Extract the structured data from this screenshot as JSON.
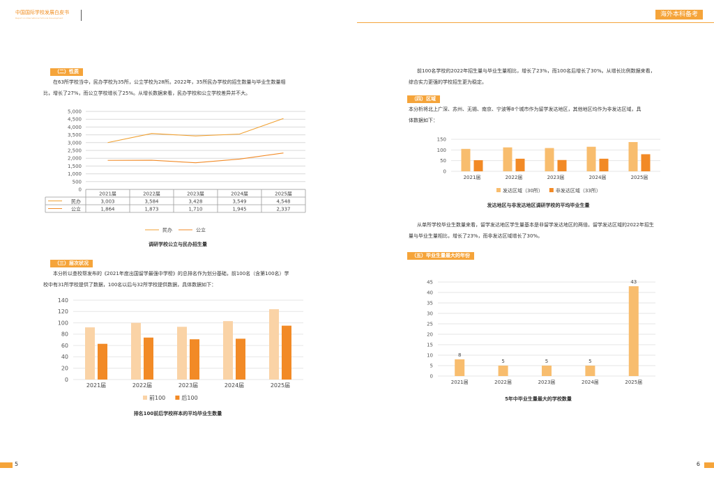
{
  "header": {
    "brand_line1": "中国国际学校发展白皮书",
    "brand_line2": "Report on International Schools Development",
    "tag": "海外本科备考"
  },
  "left": {
    "nature": {
      "label": "（二）性质",
      "lines": [
        "在63所学校当中，民办学校为35所，公立学校为28所。2022年，35所民办学校的招生数量与毕业生数量相",
        "比，增长了27%，而公立学校增长了25%。从增长数据来看，民办学校和公立学校差异并不大。"
      ]
    },
    "level": {
      "label": "（三）层次状况",
      "lines": [
        "本分析以查校帮发布的《2021年度出国留学最强中学榜》的总排名作为划分基础，前100名（含第100名）学",
        "校中有31所学校提供了数据，100名以后与32所学校提供数据，具体数据如下："
      ]
    },
    "caption1": "调研学校公立与民办招生量",
    "caption2": "排名100前后学校样本的平均毕业生数量",
    "page_num": "5"
  },
  "right": {
    "intro_lines": [
      "前100名学校的2022年招生量与毕业生量相比，增长了23%，而100名后增长了30%。从增长比例数据来看，",
      "综合实力更强的学校招生更为稳定。"
    ],
    "region": {
      "label": "（四）区域",
      "lines": [
        "本分析将北上广深、苏州、无锡、南京、宁波等8个城市作为留学发达地区，其他地区均作为非发达区域，具",
        "体数据如下："
      ]
    },
    "region_analysis": [
      "从单所学校毕业生数量来看，留学发达地区学生量基本是非留学发达地区的两倍。留学发达区域的2022年招生",
      "量与毕业生量相比，增长了23%，而非发达区域增长了30%。"
    ],
    "peak": {
      "label": "（五）毕业生量最大的年份"
    },
    "caption3": "发达地区与非发达地区调研学校的平均毕业生量",
    "caption4": "5年中毕业生量最大的学校数量",
    "page_num": "6"
  },
  "colors": {
    "accent": "#f5a43a",
    "line_private": "#f0a030",
    "light_bar": "#fad3a6",
    "dark_bar": "#f28a26",
    "mid_bar": "#f8bd6e"
  },
  "chart_data": [
    {
      "id": "line",
      "type": "line",
      "title": "调研学校公立与民办招生量",
      "categories": [
        "2021届",
        "2022届",
        "2023届",
        "2024届",
        "2025届"
      ],
      "series": [
        {
          "name": "民办",
          "values": [
            3003,
            3584,
            3428,
            3549,
            4548
          ],
          "labels": [
            "3,003",
            "3,584",
            "3,428",
            "3,549",
            "4,548"
          ]
        },
        {
          "name": "公立",
          "values": [
            1864,
            1873,
            1710,
            1945,
            2337
          ],
          "labels": [
            "1,864",
            "1,873",
            "1,710",
            "1,945",
            "2,337"
          ]
        }
      ],
      "ylim": [
        0,
        5000
      ],
      "yticks": [
        "0",
        "500",
        "1,000",
        "1,500",
        "2,000",
        "2,500",
        "3,000",
        "3,500",
        "4,000",
        "4,500",
        "5,000"
      ],
      "grid": true,
      "legend": "bottom"
    },
    {
      "id": "rank",
      "type": "bar",
      "title": "排名100前后学校样本的平均毕业生数量",
      "categories": [
        "2021届",
        "2022届",
        "2023届",
        "2024届",
        "2025届"
      ],
      "series": [
        {
          "name": "前100",
          "values": [
            92,
            100,
            93,
            103,
            124
          ]
        },
        {
          "name": "后100",
          "values": [
            63,
            74,
            71,
            72,
            95
          ]
        }
      ],
      "ylim": [
        0,
        140
      ],
      "yticks": [
        "0",
        "20",
        "40",
        "60",
        "80",
        "100",
        "120",
        "140"
      ],
      "grid": true,
      "legend": "bottom"
    },
    {
      "id": "region",
      "type": "bar",
      "title": "发达地区与非发达地区调研学校的平均毕业生量",
      "categories": [
        "2021届",
        "2022届",
        "2023届",
        "2024届",
        "2025届"
      ],
      "series": [
        {
          "name": "发达区域（30所）",
          "values": [
            105,
            112,
            109,
            115,
            137
          ]
        },
        {
          "name": "非发达区域（33所）",
          "values": [
            52,
            59,
            53,
            59,
            80
          ]
        }
      ],
      "ylim": [
        0,
        150
      ],
      "yticks": [
        "0",
        "50",
        "100",
        "150"
      ],
      "grid": true,
      "legend": "bottom"
    },
    {
      "id": "peak",
      "type": "bar",
      "title": "5年中毕业生量最大的学校数量",
      "categories": [
        "2021届",
        "2022届",
        "2023届",
        "2024届",
        "2025届"
      ],
      "series": [
        {
          "values": [
            8,
            5,
            5,
            5,
            43
          ],
          "labels": [
            "8",
            "5",
            "5",
            "5",
            "43"
          ]
        }
      ],
      "ylim": [
        0,
        45
      ],
      "yticks": [
        "0",
        "5",
        "10",
        "15",
        "20",
        "25",
        "30",
        "35",
        "40",
        "45"
      ],
      "grid": true
    }
  ]
}
